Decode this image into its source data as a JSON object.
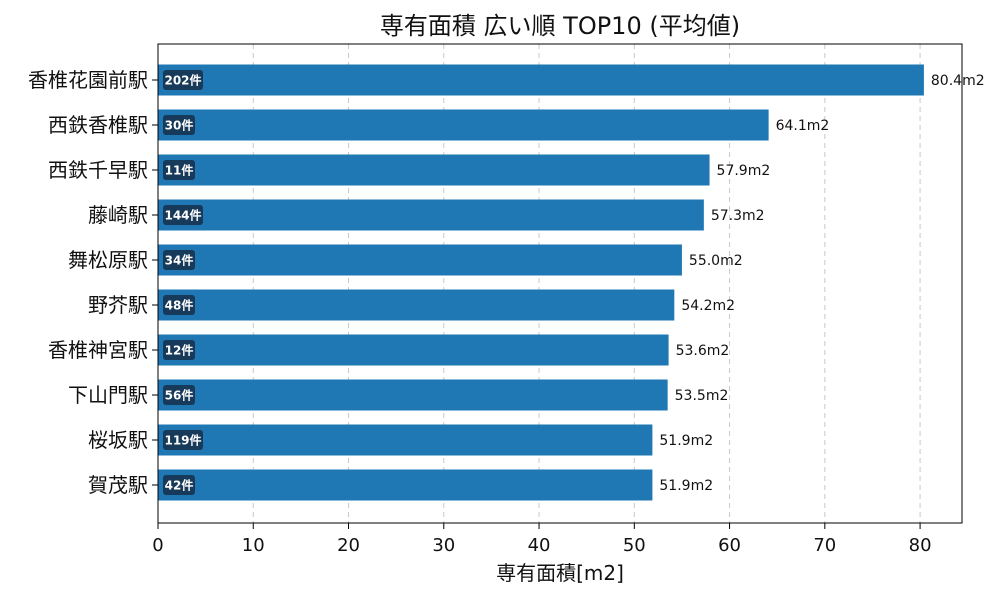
{
  "chart_data": {
    "type": "bar",
    "orientation": "horizontal",
    "title": "専有面積 広い順 TOP10 (平均値)",
    "xlabel": "専有面積[m2]",
    "ylabel": "",
    "xlim": [
      0,
      84.4
    ],
    "xticks": [
      0,
      10,
      20,
      30,
      40,
      50,
      60,
      70,
      80
    ],
    "grid": {
      "x": true,
      "y": false,
      "style": "dashed"
    },
    "categories": [
      "香椎花園前駅",
      "西鉄香椎駅",
      "西鉄千早駅",
      "藤崎駅",
      "舞松原駅",
      "野芥駅",
      "香椎神宮駅",
      "下山門駅",
      "桜坂駅",
      "賀茂駅"
    ],
    "values": [
      80.4,
      64.1,
      57.9,
      57.3,
      55.0,
      54.2,
      53.6,
      53.5,
      51.9,
      51.9
    ],
    "value_labels": [
      "80.4m2",
      "64.1m2",
      "57.9m2",
      "57.3m2",
      "55.0m2",
      "54.2m2",
      "53.6m2",
      "53.5m2",
      "51.9m2",
      "51.9m2"
    ],
    "counts": [
      "202件",
      "30件",
      "11件",
      "144件",
      "34件",
      "48件",
      "12件",
      "56件",
      "119件",
      "42件"
    ],
    "colors": {
      "bar": "#1f77b4",
      "badge": "#173a5a",
      "grid": "#c8c8c8",
      "axis": "#000000"
    }
  }
}
